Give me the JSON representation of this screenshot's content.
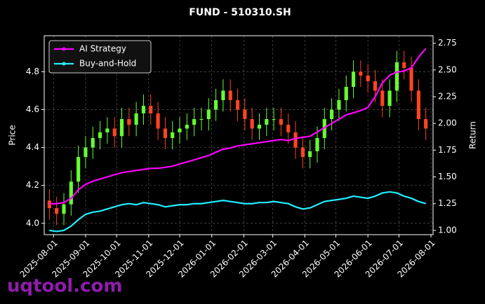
{
  "chart_data": {
    "type": "candlestick",
    "title": "FUND - 510310.SH",
    "y_label": "Price",
    "y2_label": "Return",
    "watermark": "uqtool.com",
    "x": [
      "2025-07-28",
      "2025-08-04",
      "2025-08-11",
      "2025-08-18",
      "2025-08-25",
      "2025-09-01",
      "2025-09-08",
      "2025-09-15",
      "2025-09-22",
      "2025-09-29",
      "2025-10-06",
      "2025-10-13",
      "2025-10-20",
      "2025-10-27",
      "2025-11-03",
      "2025-11-10",
      "2025-11-17",
      "2025-11-24",
      "2025-12-01",
      "2025-12-08",
      "2025-12-15",
      "2025-12-22",
      "2025-12-29",
      "2026-01-05",
      "2026-01-12",
      "2026-01-19",
      "2026-01-26",
      "2026-02-02",
      "2026-02-09",
      "2026-02-16",
      "2026-02-23",
      "2026-03-02",
      "2026-03-09",
      "2026-03-16",
      "2026-03-23",
      "2026-03-30",
      "2026-04-06",
      "2026-04-13",
      "2026-04-20",
      "2026-04-27",
      "2026-05-04",
      "2026-05-11",
      "2026-05-18",
      "2026-05-25",
      "2026-06-01",
      "2026-06-08",
      "2026-06-15",
      "2026-06-22",
      "2026-06-29",
      "2026-07-06",
      "2026-07-13",
      "2026-07-20",
      "2026-07-27"
    ],
    "open": [
      4.12,
      4.08,
      4.05,
      4.1,
      4.22,
      4.35,
      4.4,
      4.45,
      4.48,
      4.5,
      4.46,
      4.55,
      4.52,
      4.58,
      4.62,
      4.58,
      4.5,
      4.45,
      4.48,
      4.5,
      4.52,
      4.55,
      4.55,
      4.6,
      4.65,
      4.7,
      4.65,
      4.6,
      4.55,
      4.5,
      4.52,
      4.55,
      4.55,
      4.52,
      4.48,
      4.4,
      4.35,
      4.38,
      4.45,
      4.55,
      4.6,
      4.65,
      4.72,
      4.8,
      4.78,
      4.75,
      4.7,
      4.62,
      4.7,
      4.85,
      4.82,
      4.7,
      4.55
    ],
    "high": [
      4.18,
      4.14,
      4.16,
      4.28,
      4.41,
      4.46,
      4.51,
      4.54,
      4.56,
      4.56,
      4.61,
      4.61,
      4.64,
      4.68,
      4.68,
      4.64,
      4.56,
      4.54,
      4.56,
      4.58,
      4.61,
      4.61,
      4.66,
      4.71,
      4.76,
      4.76,
      4.71,
      4.66,
      4.61,
      4.58,
      4.61,
      4.61,
      4.61,
      4.58,
      4.54,
      4.46,
      4.44,
      4.51,
      4.61,
      4.66,
      4.71,
      4.78,
      4.86,
      4.86,
      4.84,
      4.81,
      4.76,
      4.76,
      4.91,
      4.91,
      4.88,
      4.76,
      4.61
    ],
    "low": [
      4.02,
      3.99,
      3.99,
      4.04,
      4.16,
      4.29,
      4.34,
      4.39,
      4.42,
      4.4,
      4.4,
      4.46,
      4.46,
      4.52,
      4.52,
      4.44,
      4.39,
      4.39,
      4.42,
      4.44,
      4.46,
      4.49,
      4.49,
      4.54,
      4.59,
      4.59,
      4.54,
      4.49,
      4.44,
      4.44,
      4.46,
      4.49,
      4.46,
      4.42,
      4.34,
      4.29,
      4.29,
      4.32,
      4.39,
      4.49,
      4.54,
      4.59,
      4.66,
      4.72,
      4.69,
      4.64,
      4.56,
      4.56,
      4.64,
      4.76,
      4.64,
      4.49,
      4.44
    ],
    "close": [
      4.08,
      4.05,
      4.1,
      4.22,
      4.35,
      4.4,
      4.45,
      4.48,
      4.5,
      4.46,
      4.55,
      4.52,
      4.58,
      4.62,
      4.58,
      4.5,
      4.45,
      4.48,
      4.5,
      4.52,
      4.55,
      4.55,
      4.6,
      4.65,
      4.7,
      4.65,
      4.6,
      4.55,
      4.5,
      4.52,
      4.55,
      4.55,
      4.52,
      4.48,
      4.4,
      4.35,
      4.38,
      4.45,
      4.55,
      4.6,
      4.65,
      4.72,
      4.8,
      4.78,
      4.75,
      4.7,
      4.62,
      4.7,
      4.85,
      4.82,
      4.7,
      4.55,
      4.5
    ],
    "up_color": "#66ff33",
    "down_color": "#ff4422",
    "series": [
      {
        "name": "AI Strategy",
        "color": "#ff00ff",
        "axis": "y2",
        "values": [
          1.25,
          1.25,
          1.26,
          1.3,
          1.38,
          1.43,
          1.46,
          1.48,
          1.5,
          1.52,
          1.54,
          1.55,
          1.56,
          1.57,
          1.58,
          1.58,
          1.59,
          1.6,
          1.62,
          1.64,
          1.66,
          1.68,
          1.7,
          1.73,
          1.76,
          1.77,
          1.79,
          1.8,
          1.81,
          1.82,
          1.83,
          1.84,
          1.85,
          1.84,
          1.86,
          1.87,
          1.88,
          1.92,
          1.96,
          2.0,
          2.04,
          2.08,
          2.1,
          2.12,
          2.15,
          2.25,
          2.38,
          2.45,
          2.48,
          2.49,
          2.52,
          2.62,
          2.7
        ]
      },
      {
        "name": "Buy-and-Hold",
        "color": "#22eeff",
        "axis": "y2",
        "values": [
          1.0,
          0.99,
          1.0,
          1.04,
          1.1,
          1.15,
          1.17,
          1.18,
          1.2,
          1.22,
          1.24,
          1.25,
          1.24,
          1.26,
          1.25,
          1.24,
          1.22,
          1.23,
          1.24,
          1.24,
          1.25,
          1.25,
          1.26,
          1.27,
          1.28,
          1.27,
          1.26,
          1.25,
          1.25,
          1.26,
          1.26,
          1.27,
          1.26,
          1.25,
          1.22,
          1.2,
          1.21,
          1.24,
          1.27,
          1.28,
          1.29,
          1.3,
          1.32,
          1.31,
          1.3,
          1.32,
          1.35,
          1.36,
          1.35,
          1.32,
          1.3,
          1.27,
          1.25
        ]
      }
    ],
    "xlim": [
      "2025-07-23",
      "2026-08-03"
    ],
    "xticks": [
      "2025-08-01",
      "2025-09-01",
      "2025-10-01",
      "2025-11-01",
      "2025-12-01",
      "2026-01-01",
      "2026-02-01",
      "2026-03-01",
      "2026-04-01",
      "2026-05-01",
      "2026-06-01",
      "2026-07-01",
      "2026-08-01"
    ],
    "ylim": [
      3.94,
      4.99
    ],
    "yticks": [
      {
        "value": 4,
        "label": "4.0"
      },
      4.2,
      4.4,
      4.6,
      4.8
    ],
    "y2lim": [
      0.96,
      2.82
    ],
    "y2ticks": [
      {
        "value": 1,
        "label": "1.00"
      },
      1.25,
      {
        "value": 1.5,
        "label": "1.50"
      },
      1.75,
      {
        "value": 2,
        "label": "2.00"
      },
      2.25,
      {
        "value": 2.5,
        "label": "2.50"
      },
      2.75
    ],
    "grid": true,
    "legend": "upper-left"
  }
}
